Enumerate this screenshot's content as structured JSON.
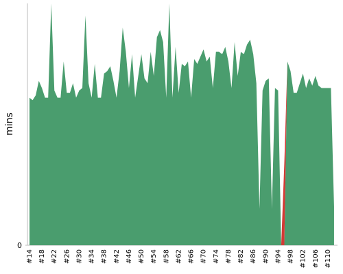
{
  "chart_data": {
    "type": "area",
    "y_label": "mins",
    "categories": [
      "#14",
      null,
      null,
      null,
      "#18",
      null,
      null,
      null,
      "#22",
      null,
      null,
      null,
      "#26",
      null,
      null,
      null,
      "#30",
      null,
      null,
      null,
      "#34",
      null,
      null,
      null,
      "#38",
      null,
      null,
      null,
      "#42",
      null,
      null,
      null,
      "#46",
      null,
      null,
      null,
      "#50",
      null,
      null,
      null,
      "#54",
      null,
      null,
      null,
      "#58",
      null,
      null,
      null,
      "#62",
      null,
      null,
      null,
      "#66",
      null,
      null,
      null,
      "#70",
      null,
      null,
      null,
      "#74",
      null,
      null,
      null,
      "#78",
      null,
      null,
      null,
      "#82",
      null,
      null,
      null,
      "#86",
      null,
      null,
      null,
      "#90",
      null,
      null,
      null,
      "#94",
      null,
      null,
      null,
      "#98",
      null,
      null,
      null,
      "#102",
      null,
      null,
      null,
      "#106",
      null,
      null,
      null,
      "#110",
      null,
      null
    ],
    "series": [
      {
        "color": "#4a9d6e",
        "values": [
          6.1,
          6.0,
          6.2,
          6.8,
          6.5,
          6.1,
          6.1,
          10,
          6.4,
          6.1,
          6.1,
          7.6,
          6.3,
          6.3,
          6.7,
          6.1,
          6.4,
          6.5,
          9.5,
          6.7,
          6.1,
          7.5,
          6.1,
          6.1,
          7.1,
          7.2,
          7.4,
          6.8,
          6.1,
          7.2,
          9.0,
          8.0,
          6.5,
          7.9,
          6.1,
          7.0,
          7.9,
          6.9,
          6.7,
          8.0,
          7.0,
          8.6,
          8.9,
          8.4,
          6.1,
          10,
          6.1,
          8.2,
          6.3,
          7.5,
          7.4,
          7.6,
          6.1,
          7.7,
          7.5,
          7.8,
          8.1,
          7.6,
          7.8,
          6.5,
          8.0,
          8.0,
          7.9,
          8.2,
          7.6,
          6.5,
          8.4,
          7.0,
          8.0,
          7.9,
          8.3,
          8.5,
          7.9,
          6.7,
          1.5,
          6.4,
          6.8,
          6.9,
          1.5,
          6.5,
          6.4,
          0,
          0,
          7.6,
          7.2,
          6.3,
          6.3,
          6.7,
          7.1,
          6.5,
          6.9,
          6.6,
          7.0,
          6.6,
          6.5,
          6.5,
          6.5,
          6.5,
          1.6
        ]
      },
      {
        "color": "#d33a35",
        "values": [
          null,
          null,
          null,
          null,
          null,
          null,
          null,
          null,
          null,
          null,
          null,
          null,
          null,
          null,
          null,
          null,
          null,
          null,
          null,
          null,
          null,
          null,
          null,
          null,
          null,
          null,
          null,
          null,
          null,
          null,
          null,
          null,
          null,
          null,
          null,
          null,
          null,
          null,
          null,
          null,
          null,
          null,
          null,
          null,
          null,
          null,
          null,
          null,
          null,
          null,
          null,
          null,
          null,
          null,
          null,
          null,
          null,
          null,
          null,
          null,
          null,
          null,
          null,
          null,
          null,
          null,
          null,
          null,
          null,
          null,
          null,
          null,
          null,
          null,
          null,
          null,
          null,
          null,
          null,
          null,
          null,
          0,
          3.4,
          0,
          null,
          null,
          null,
          null,
          null,
          null,
          null,
          null,
          null,
          null,
          null,
          null,
          null,
          null,
          null
        ]
      }
    ],
    "ylim": [
      0,
      10
    ],
    "yticks": [
      0
    ]
  }
}
